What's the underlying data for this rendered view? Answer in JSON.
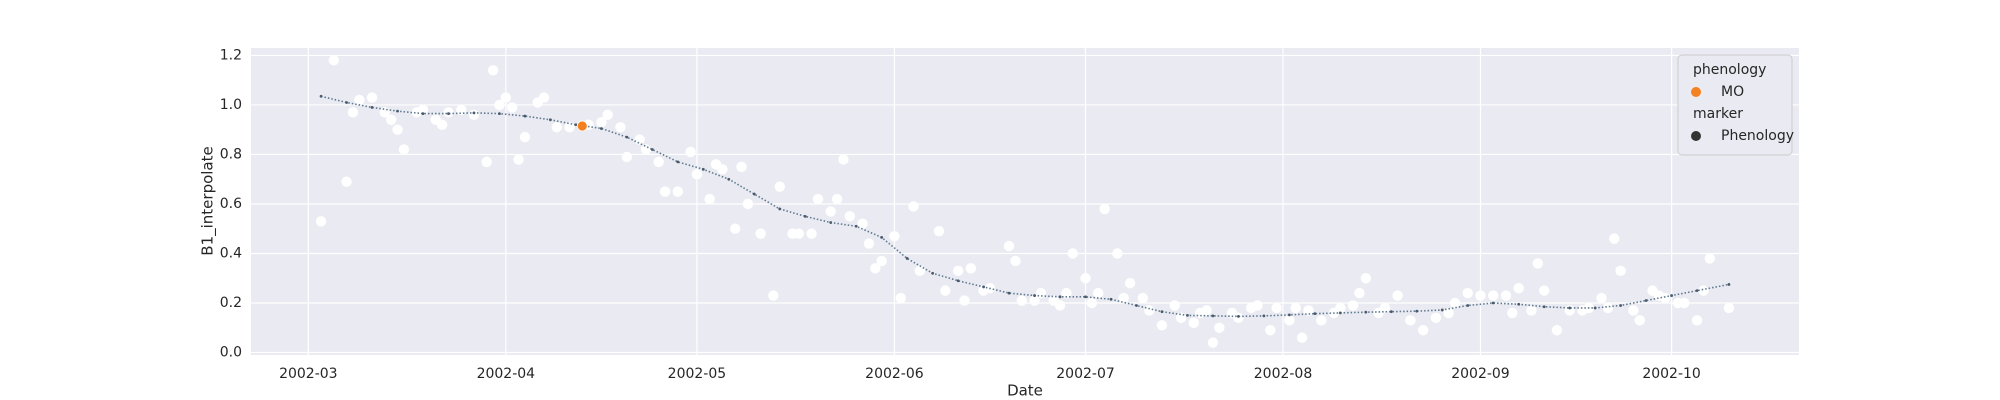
{
  "chart_data": {
    "type": "scatter",
    "xlabel": "Date",
    "ylabel": "B1_interpolate",
    "xlim": [
      "2002-02-20",
      "2002-10-21"
    ],
    "xticks": [
      {
        "value": "2002-03-01",
        "label": "2002-03"
      },
      {
        "value": "2002-04-01",
        "label": "2002-04"
      },
      {
        "value": "2002-05-01",
        "label": "2002-05"
      },
      {
        "value": "2002-06-01",
        "label": "2002-06"
      },
      {
        "value": "2002-07-01",
        "label": "2002-07"
      },
      {
        "value": "2002-08-01",
        "label": "2002-08"
      },
      {
        "value": "2002-09-01",
        "label": "2002-09"
      },
      {
        "value": "2002-10-01",
        "label": "2002-10"
      }
    ],
    "ylim": [
      -0.01,
      1.23
    ],
    "yticks": [
      {
        "value": 0,
        "label": "0.0"
      },
      0.2,
      0.4,
      0.6,
      0.8,
      {
        "value": 1,
        "label": "1.0"
      },
      1.2
    ],
    "grid": true,
    "background": "#eaeaf2",
    "series": [
      {
        "type": "scatter",
        "color": "#ffffff",
        "x": [
          "2002-03-03",
          "2002-03-05",
          "2002-03-07",
          "2002-03-08",
          "2002-03-09",
          "2002-03-11",
          "2002-03-13",
          "2002-03-14",
          "2002-03-15",
          "2002-03-16",
          "2002-03-18",
          "2002-03-19",
          "2002-03-21",
          "2002-03-22",
          "2002-03-23",
          "2002-03-25",
          "2002-03-27",
          "2002-03-29",
          "2002-03-30",
          "2002-03-31",
          "2002-04-01",
          "2002-04-02",
          "2002-04-03",
          "2002-04-04",
          "2002-04-06",
          "2002-04-07",
          "2002-04-09",
          "2002-04-11",
          "2002-04-14",
          "2002-04-16",
          "2002-04-17",
          "2002-04-19",
          "2002-04-20",
          "2002-04-22",
          "2002-04-23",
          "2002-04-25",
          "2002-04-26",
          "2002-04-28",
          "2002-04-30",
          "2002-05-01",
          "2002-05-03",
          "2002-05-04",
          "2002-05-05",
          "2002-05-07",
          "2002-05-08",
          "2002-05-09",
          "2002-05-11",
          "2002-05-13",
          "2002-05-14",
          "2002-05-16",
          "2002-05-17",
          "2002-05-19",
          "2002-05-20",
          "2002-05-22",
          "2002-05-23",
          "2002-05-24",
          "2002-05-25",
          "2002-05-27",
          "2002-05-28",
          "2002-05-29",
          "2002-05-30",
          "2002-06-01",
          "2002-06-02",
          "2002-06-04",
          "2002-06-05",
          "2002-06-08",
          "2002-06-09",
          "2002-06-11",
          "2002-06-12",
          "2002-06-13",
          "2002-06-15",
          "2002-06-16",
          "2002-06-19",
          "2002-06-20",
          "2002-06-21",
          "2002-06-23",
          "2002-06-24",
          "2002-06-26",
          "2002-06-27",
          "2002-06-28",
          "2002-06-29",
          "2002-07-01",
          "2002-07-02",
          "2002-07-03",
          "2002-07-04",
          "2002-07-06",
          "2002-07-07",
          "2002-07-08",
          "2002-07-10",
          "2002-07-11",
          "2002-07-13",
          "2002-07-15",
          "2002-07-16",
          "2002-07-18",
          "2002-07-19",
          "2002-07-20",
          "2002-07-21",
          "2002-07-22",
          "2002-07-24",
          "2002-07-25",
          "2002-07-27",
          "2002-07-28",
          "2002-07-30",
          "2002-07-31",
          "2002-08-02",
          "2002-08-03",
          "2002-08-04",
          "2002-08-05",
          "2002-08-07",
          "2002-08-09",
          "2002-08-10",
          "2002-08-12",
          "2002-08-13",
          "2002-08-14",
          "2002-08-16",
          "2002-08-17",
          "2002-08-19",
          "2002-08-21",
          "2002-08-23",
          "2002-08-25",
          "2002-08-27",
          "2002-08-28",
          "2002-08-30",
          "2002-09-01",
          "2002-09-03",
          "2002-09-05",
          "2002-09-06",
          "2002-09-07",
          "2002-09-09",
          "2002-09-10",
          "2002-09-11",
          "2002-09-13",
          "2002-09-15",
          "2002-09-17",
          "2002-09-18",
          "2002-09-20",
          "2002-09-21",
          "2002-09-22",
          "2002-09-23",
          "2002-09-25",
          "2002-09-26",
          "2002-09-28",
          "2002-09-29",
          "2002-09-30",
          "2002-10-02",
          "2002-10-03",
          "2002-10-05",
          "2002-10-06",
          "2002-10-07",
          "2002-10-10"
        ],
        "values": [
          0.53,
          1.18,
          0.69,
          0.97,
          1.02,
          1.03,
          0.97,
          0.94,
          0.9,
          0.82,
          0.97,
          0.98,
          0.94,
          0.92,
          0.97,
          0.98,
          0.96,
          0.77,
          1.14,
          1.0,
          1.03,
          0.99,
          0.78,
          0.87,
          1.01,
          1.03,
          0.91,
          0.91,
          0.92,
          0.93,
          0.96,
          0.91,
          0.79,
          0.86,
          0.82,
          0.77,
          0.65,
          0.65,
          0.81,
          0.72,
          0.62,
          0.76,
          0.74,
          0.5,
          0.75,
          0.6,
          0.48,
          0.23,
          0.67,
          0.48,
          0.48,
          0.48,
          0.62,
          0.57,
          0.62,
          0.78,
          0.55,
          0.52,
          0.44,
          0.34,
          0.37,
          0.47,
          0.22,
          0.59,
          0.33,
          0.49,
          0.25,
          0.33,
          0.21,
          0.34,
          0.25,
          0.26,
          0.43,
          0.37,
          0.21,
          0.21,
          0.24,
          0.21,
          0.19,
          0.24,
          0.4,
          0.3,
          0.2,
          0.24,
          0.58,
          0.4,
          0.22,
          0.28,
          0.22,
          0.17,
          0.11,
          0.19,
          0.14,
          0.12,
          0.16,
          0.17,
          0.04,
          0.1,
          0.16,
          0.14,
          0.18,
          0.19,
          0.09,
          0.18,
          0.13,
          0.18,
          0.06,
          0.17,
          0.13,
          0.16,
          0.18,
          0.19,
          0.24,
          0.3,
          0.16,
          0.18,
          0.23,
          0.13,
          0.09,
          0.14,
          0.16,
          0.2,
          0.24,
          0.23,
          0.23,
          0.23,
          0.16,
          0.26,
          0.17,
          0.36,
          0.25,
          0.09,
          0.17,
          0.17,
          0.18,
          0.22,
          0.18,
          0.46,
          0.33,
          0.17,
          0.13,
          0.25,
          0.23,
          0.22,
          0.2,
          0.2,
          0.13,
          0.25,
          0.38,
          0.18
        ]
      },
      {
        "type": "line",
        "color": "#5f7a90",
        "x": [
          "2002-03-03",
          "2002-03-07",
          "2002-03-11",
          "2002-03-15",
          "2002-03-19",
          "2002-03-23",
          "2002-03-27",
          "2002-03-31",
          "2002-04-04",
          "2002-04-08",
          "2002-04-12",
          "2002-04-16",
          "2002-04-20",
          "2002-04-24",
          "2002-04-28",
          "2002-05-02",
          "2002-05-06",
          "2002-05-10",
          "2002-05-14",
          "2002-05-18",
          "2002-05-22",
          "2002-05-26",
          "2002-05-30",
          "2002-06-03",
          "2002-06-07",
          "2002-06-11",
          "2002-06-15",
          "2002-06-19",
          "2002-06-23",
          "2002-06-27",
          "2002-07-01",
          "2002-07-05",
          "2002-07-09",
          "2002-07-13",
          "2002-07-17",
          "2002-07-21",
          "2002-07-25",
          "2002-07-29",
          "2002-08-02",
          "2002-08-06",
          "2002-08-10",
          "2002-08-14",
          "2002-08-18",
          "2002-08-22",
          "2002-08-26",
          "2002-08-30",
          "2002-09-03",
          "2002-09-07",
          "2002-09-11",
          "2002-09-15",
          "2002-09-19",
          "2002-09-23",
          "2002-09-27",
          "2002-10-01",
          "2002-10-05",
          "2002-10-10"
        ],
        "values": [
          1.035,
          1.01,
          0.99,
          0.975,
          0.965,
          0.965,
          0.968,
          0.965,
          0.955,
          0.94,
          0.92,
          0.905,
          0.87,
          0.82,
          0.77,
          0.74,
          0.7,
          0.64,
          0.58,
          0.55,
          0.525,
          0.51,
          0.465,
          0.38,
          0.32,
          0.29,
          0.265,
          0.24,
          0.23,
          0.225,
          0.225,
          0.215,
          0.19,
          0.165,
          0.15,
          0.148,
          0.146,
          0.148,
          0.152,
          0.157,
          0.16,
          0.163,
          0.165,
          0.167,
          0.172,
          0.19,
          0.2,
          0.195,
          0.185,
          0.18,
          0.18,
          0.19,
          0.21,
          0.23,
          0.25,
          0.275
        ]
      },
      {
        "type": "scatter",
        "name": "MO",
        "color": "#f5801f",
        "x": [
          "2002-04-13"
        ],
        "values": [
          0.915
        ]
      }
    ],
    "legend_title": "phenology",
    "legend_loc": "upper right",
    "marker_legend": {
      "title": "marker",
      "label": "Phenology",
      "color": "#333333"
    }
  }
}
